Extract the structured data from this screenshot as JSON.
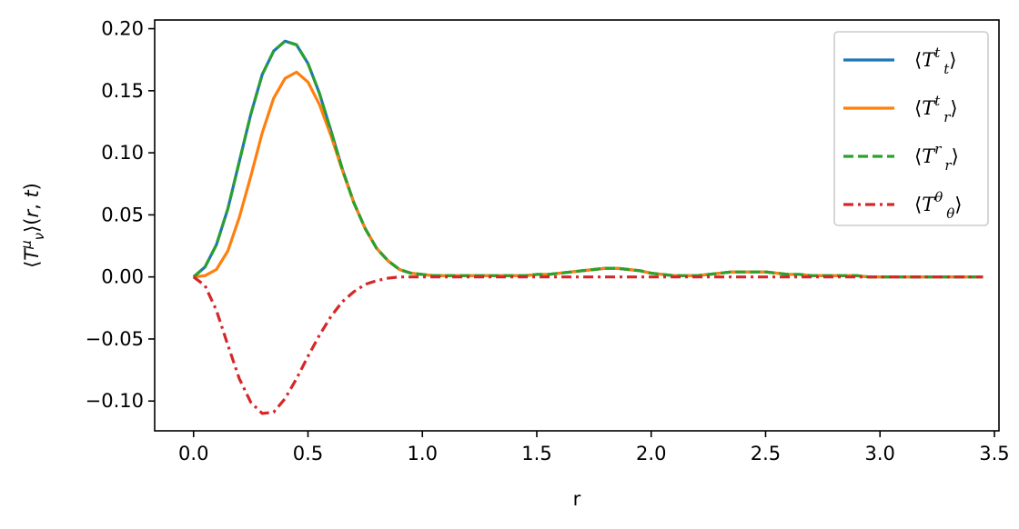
{
  "chart_data": {
    "type": "line",
    "title": "",
    "xlabel": "r",
    "ylabel": "⟨T^μ_ν⟩(r, t)",
    "xlim": [
      -0.17,
      3.52
    ],
    "ylim": [
      -0.124,
      0.207
    ],
    "xticks": [
      0.0,
      0.5,
      1.0,
      1.5,
      2.0,
      2.5,
      3.0,
      3.5
    ],
    "xtick_labels": [
      "0.0",
      "0.5",
      "1.0",
      "1.5",
      "2.0",
      "2.5",
      "3.0",
      "3.5"
    ],
    "yticks": [
      -0.1,
      -0.05,
      0.0,
      0.05,
      0.1,
      0.15,
      0.2
    ],
    "ytick_labels": [
      "−0.10",
      "−0.05",
      "0.00",
      "0.05",
      "0.10",
      "0.15",
      "0.20"
    ],
    "grid": false,
    "legend_position": "top-right",
    "x": [
      0.0,
      0.05,
      0.1,
      0.15,
      0.2,
      0.25,
      0.3,
      0.35,
      0.4,
      0.45,
      0.5,
      0.55,
      0.6,
      0.65,
      0.7,
      0.75,
      0.8,
      0.85,
      0.9,
      0.95,
      1.0,
      1.05,
      1.1,
      1.15,
      1.2,
      1.25,
      1.3,
      1.35,
      1.4,
      1.45,
      1.5,
      1.55,
      1.6,
      1.65,
      1.7,
      1.75,
      1.8,
      1.85,
      1.9,
      1.95,
      2.0,
      2.05,
      2.1,
      2.15,
      2.2,
      2.25,
      2.3,
      2.35,
      2.4,
      2.45,
      2.5,
      2.55,
      2.6,
      2.65,
      2.7,
      2.75,
      2.8,
      2.85,
      2.9,
      2.95,
      3.0,
      3.05,
      3.1,
      3.15,
      3.2,
      3.25,
      3.3,
      3.35,
      3.4,
      3.45
    ],
    "series": [
      {
        "name": "⟨T^t_t⟩",
        "base": "T",
        "sup": "t",
        "sub": "t",
        "color": "#1f77b4",
        "dash": "solid",
        "values": [
          0.0,
          0.008,
          0.026,
          0.055,
          0.093,
          0.131,
          0.163,
          0.182,
          0.19,
          0.187,
          0.172,
          0.148,
          0.118,
          0.087,
          0.06,
          0.039,
          0.023,
          0.013,
          0.006,
          0.003,
          0.002,
          0.001,
          0.001,
          0.001,
          0.001,
          0.001,
          0.001,
          0.001,
          0.001,
          0.001,
          0.002,
          0.002,
          0.003,
          0.004,
          0.005,
          0.006,
          0.007,
          0.007,
          0.006,
          0.005,
          0.003,
          0.002,
          0.001,
          0.001,
          0.001,
          0.002,
          0.003,
          0.004,
          0.004,
          0.004,
          0.004,
          0.003,
          0.002,
          0.002,
          0.001,
          0.001,
          0.001,
          0.001,
          0.001,
          0.0,
          0.0,
          0.0,
          0.0,
          0.0,
          0.0,
          0.0,
          0.0,
          0.0,
          0.0,
          0.0
        ]
      },
      {
        "name": "⟨T^t_r⟩",
        "base": "T",
        "sup": "t",
        "sub": "r",
        "color": "#ff7f0e",
        "dash": "solid",
        "values": [
          0.0,
          0.001,
          0.006,
          0.021,
          0.048,
          0.081,
          0.116,
          0.144,
          0.16,
          0.165,
          0.157,
          0.139,
          0.114,
          0.086,
          0.06,
          0.039,
          0.023,
          0.013,
          0.006,
          0.003,
          0.002,
          0.001,
          0.001,
          0.001,
          0.001,
          0.001,
          0.001,
          0.001,
          0.001,
          0.001,
          0.002,
          0.002,
          0.003,
          0.004,
          0.005,
          0.006,
          0.007,
          0.007,
          0.006,
          0.005,
          0.003,
          0.002,
          0.001,
          0.001,
          0.001,
          0.002,
          0.003,
          0.004,
          0.004,
          0.004,
          0.004,
          0.003,
          0.002,
          0.002,
          0.001,
          0.001,
          0.001,
          0.001,
          0.001,
          0.0,
          0.0,
          0.0,
          0.0,
          0.0,
          0.0,
          0.0,
          0.0,
          0.0,
          0.0,
          0.0
        ]
      },
      {
        "name": "⟨T^r_r⟩",
        "base": "T",
        "sup": "r",
        "sub": "r",
        "color": "#2ca02c",
        "dash": "dashed",
        "values": [
          0.0,
          0.008,
          0.026,
          0.055,
          0.093,
          0.131,
          0.163,
          0.182,
          0.19,
          0.187,
          0.172,
          0.148,
          0.118,
          0.087,
          0.06,
          0.039,
          0.023,
          0.013,
          0.006,
          0.003,
          0.002,
          0.001,
          0.001,
          0.001,
          0.001,
          0.001,
          0.001,
          0.001,
          0.001,
          0.001,
          0.002,
          0.002,
          0.003,
          0.004,
          0.005,
          0.006,
          0.007,
          0.007,
          0.006,
          0.005,
          0.003,
          0.002,
          0.001,
          0.001,
          0.001,
          0.002,
          0.003,
          0.004,
          0.004,
          0.004,
          0.004,
          0.003,
          0.002,
          0.002,
          0.001,
          0.001,
          0.001,
          0.001,
          0.001,
          0.0,
          0.0,
          0.0,
          0.0,
          0.0,
          0.0,
          0.0,
          0.0,
          0.0,
          0.0,
          0.0
        ]
      },
      {
        "name": "⟨T^θ_θ⟩",
        "base": "T",
        "sup": "θ",
        "sub": "θ",
        "color": "#d62728",
        "dash": "dashdot",
        "values": [
          0.0,
          -0.007,
          -0.027,
          -0.055,
          -0.082,
          -0.101,
          -0.11,
          -0.109,
          -0.098,
          -0.082,
          -0.064,
          -0.047,
          -0.032,
          -0.02,
          -0.012,
          -0.006,
          -0.003,
          -0.001,
          0.0,
          0.0,
          0.0,
          0.0,
          0.0,
          0.0,
          0.0,
          0.0,
          0.0,
          0.0,
          0.0,
          0.0,
          0.0,
          0.0,
          0.0,
          0.0,
          0.0,
          0.0,
          0.0,
          0.0,
          0.0,
          0.0,
          0.0,
          0.0,
          0.0,
          0.0,
          0.0,
          0.0,
          0.0,
          0.0,
          0.0,
          0.0,
          0.0,
          0.0,
          0.0,
          0.0,
          0.0,
          0.0,
          0.0,
          0.0,
          0.0,
          0.0,
          0.0,
          0.0,
          0.0,
          0.0,
          0.0,
          0.0,
          0.0,
          0.0,
          0.0,
          0.0
        ]
      }
    ]
  }
}
